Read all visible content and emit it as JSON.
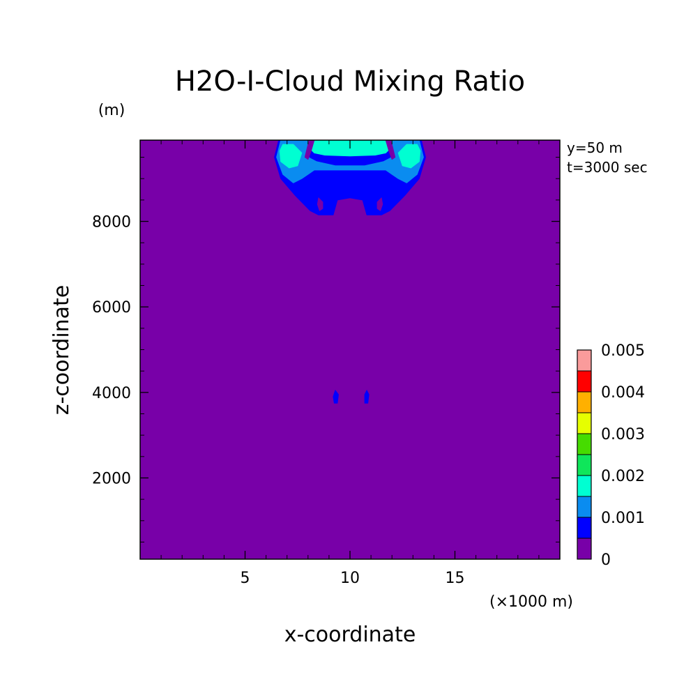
{
  "chart_data": {
    "type": "heatmap",
    "title": "H2O-I-Cloud Mixing Ratio",
    "ylabel": "z-coordinate",
    "xlabel": "x-coordinate",
    "y_unit": "(m)",
    "x_unit": "(×1000 m)",
    "info": [
      "y=50 m",
      "t=3000 sec"
    ],
    "xlim": [
      0,
      20
    ],
    "ylim": [
      100,
      9900
    ],
    "x_major_ticks": [
      5,
      10,
      15
    ],
    "x_minor_ticks": [
      1,
      2,
      3,
      4,
      6,
      7,
      8,
      9,
      11,
      12,
      13,
      14,
      16,
      17,
      18,
      19
    ],
    "y_major_ticks": [
      2000,
      4000,
      6000,
      8000
    ],
    "y_minor_ticks": [
      500,
      1000,
      1500,
      2500,
      3000,
      3500,
      4500,
      5000,
      5500,
      6500,
      7000,
      7500,
      8500,
      9000,
      9500
    ],
    "colorbar": {
      "levels": [
        0,
        0.0005,
        0.001,
        0.0015,
        0.002,
        0.0025,
        0.003,
        0.0035,
        0.004,
        0.0045,
        0.005
      ],
      "colors": [
        "#7800a8",
        "#0000ff",
        "#0a8cf0",
        "#00ffd2",
        "#0fe65a",
        "#46dc00",
        "#e6ff00",
        "#ffb000",
        "#ff0000",
        "#fa9b9b"
      ],
      "labels": [
        {
          "value": 0,
          "text": "0"
        },
        {
          "value": 0.001,
          "text": "0.001"
        },
        {
          "value": 0.002,
          "text": "0.002"
        },
        {
          "value": 0.003,
          "text": "0.003"
        },
        {
          "value": 0.004,
          "text": "0.004"
        },
        {
          "value": 0.005,
          "text": "0.005"
        }
      ]
    },
    "regions": [
      {
        "name": "cloud-anvil-outer",
        "level_index": 1,
        "points": [
          [
            6.6,
            9900
          ],
          [
            13.4,
            9900
          ],
          [
            13.6,
            9500
          ],
          [
            13.3,
            9000
          ],
          [
            12.6,
            8600
          ],
          [
            11.9,
            8250
          ],
          [
            11.5,
            8150
          ],
          [
            10.8,
            8150
          ],
          [
            10.6,
            8500
          ],
          [
            10.0,
            8550
          ],
          [
            9.4,
            8500
          ],
          [
            9.2,
            8150
          ],
          [
            8.5,
            8150
          ],
          [
            8.1,
            8250
          ],
          [
            7.4,
            8600
          ],
          [
            6.7,
            9000
          ],
          [
            6.4,
            9500
          ]
        ]
      },
      {
        "name": "cloud-core-mid",
        "level_index": 2,
        "points": [
          [
            6.7,
            9900
          ],
          [
            8.0,
            9900
          ],
          [
            8.1,
            9700
          ],
          [
            8.0,
            9500
          ],
          [
            8.4,
            9400
          ],
          [
            9.3,
            9300
          ],
          [
            10.0,
            9300
          ],
          [
            10.7,
            9300
          ],
          [
            11.6,
            9400
          ],
          [
            12.0,
            9500
          ],
          [
            11.9,
            9700
          ],
          [
            12.0,
            9900
          ],
          [
            13.3,
            9900
          ],
          [
            13.5,
            9500
          ],
          [
            13.2,
            9100
          ],
          [
            12.7,
            8900
          ],
          [
            12.3,
            9000
          ],
          [
            12.0,
            9100
          ],
          [
            11.7,
            9200
          ],
          [
            8.3,
            9200
          ],
          [
            8.0,
            9100
          ],
          [
            7.7,
            9000
          ],
          [
            7.3,
            8900
          ],
          [
            6.8,
            9100
          ],
          [
            6.5,
            9500
          ]
        ]
      },
      {
        "name": "cloud-top-center",
        "level_index": 3,
        "points": [
          [
            8.0,
            9900
          ],
          [
            12.0,
            9900
          ],
          [
            12.0,
            9750
          ],
          [
            11.7,
            9600
          ],
          [
            11.2,
            9550
          ],
          [
            10.0,
            9530
          ],
          [
            8.8,
            9550
          ],
          [
            8.3,
            9600
          ],
          [
            8.0,
            9750
          ]
        ]
      },
      {
        "name": "cloud-lobe-left",
        "level_index": 3,
        "points": [
          [
            6.8,
            9800
          ],
          [
            7.3,
            9800
          ],
          [
            7.7,
            9600
          ],
          [
            7.5,
            9300
          ],
          [
            7.1,
            9250
          ],
          [
            6.7,
            9400
          ],
          [
            6.65,
            9650
          ]
        ]
      },
      {
        "name": "cloud-lobe-right",
        "level_index": 3,
        "points": [
          [
            12.7,
            9800
          ],
          [
            13.2,
            9800
          ],
          [
            13.35,
            9650
          ],
          [
            13.3,
            9400
          ],
          [
            12.9,
            9250
          ],
          [
            12.5,
            9300
          ],
          [
            12.3,
            9600
          ]
        ]
      },
      {
        "name": "clear-notch-left",
        "level_index": 0,
        "points": [
          [
            8.05,
            9900
          ],
          [
            8.3,
            9900
          ],
          [
            8.15,
            9650
          ],
          [
            8.0,
            9450
          ],
          [
            7.85,
            9500
          ],
          [
            7.95,
            9700
          ]
        ]
      },
      {
        "name": "clear-notch-right",
        "level_index": 0,
        "points": [
          [
            11.7,
            9900
          ],
          [
            11.95,
            9900
          ],
          [
            12.05,
            9700
          ],
          [
            12.15,
            9500
          ],
          [
            12.0,
            9450
          ],
          [
            11.85,
            9650
          ]
        ]
      },
      {
        "name": "clear-pocket-left",
        "level_index": 0,
        "points": [
          [
            8.5,
            8550
          ],
          [
            8.7,
            8450
          ],
          [
            8.7,
            8300
          ],
          [
            8.55,
            8250
          ],
          [
            8.45,
            8400
          ]
        ]
      },
      {
        "name": "clear-pocket-right",
        "level_index": 0,
        "points": [
          [
            11.5,
            8550
          ],
          [
            11.3,
            8450
          ],
          [
            11.3,
            8300
          ],
          [
            11.45,
            8250
          ],
          [
            11.55,
            8400
          ]
        ]
      },
      {
        "name": "small-cell-left",
        "level_index": 1,
        "points": [
          [
            9.3,
            4050
          ],
          [
            9.45,
            3950
          ],
          [
            9.4,
            3750
          ],
          [
            9.25,
            3750
          ],
          [
            9.2,
            3900
          ]
        ]
      },
      {
        "name": "small-cell-right",
        "level_index": 1,
        "points": [
          [
            10.7,
            3950
          ],
          [
            10.8,
            4050
          ],
          [
            10.9,
            3950
          ],
          [
            10.85,
            3750
          ],
          [
            10.7,
            3750
          ]
        ]
      }
    ]
  }
}
